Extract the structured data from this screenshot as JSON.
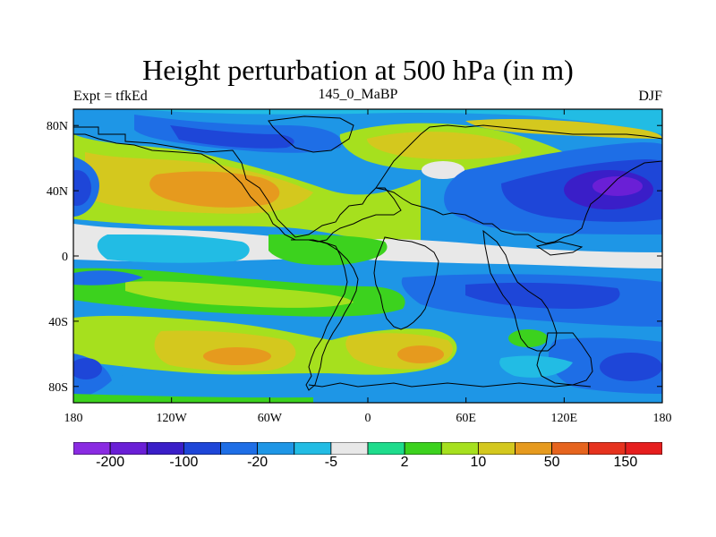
{
  "header": {
    "title": "Height perturbation at 500 hPa (in m)",
    "left_label": "Expt = tfkEd",
    "center_label": "145_0_MaBP",
    "right_label": "DJF"
  },
  "map": {
    "lon_ticks": [
      "180",
      "120W",
      "60W",
      "0",
      "60E",
      "120E",
      "180"
    ],
    "lat_ticks": [
      "80N",
      "40N",
      "0",
      "40S",
      "80S"
    ],
    "lon_range": [
      -180,
      180
    ],
    "lat_range": [
      -90,
      90
    ]
  },
  "colorbar": {
    "colors": [
      "#8a2be2",
      "#6a1fd6",
      "#3a1ec8",
      "#1e46d8",
      "#1e6ee6",
      "#1e96e6",
      "#22bce4",
      "#e8e8e8",
      "#1edc8c",
      "#3cd21e",
      "#a6e01e",
      "#d4c81e",
      "#e69a1e",
      "#e6641e",
      "#e6321e",
      "#e61e1e"
    ],
    "labels": [
      "-200",
      "-100",
      "-20",
      "-5",
      "2",
      "10",
      "50",
      "150"
    ]
  }
}
